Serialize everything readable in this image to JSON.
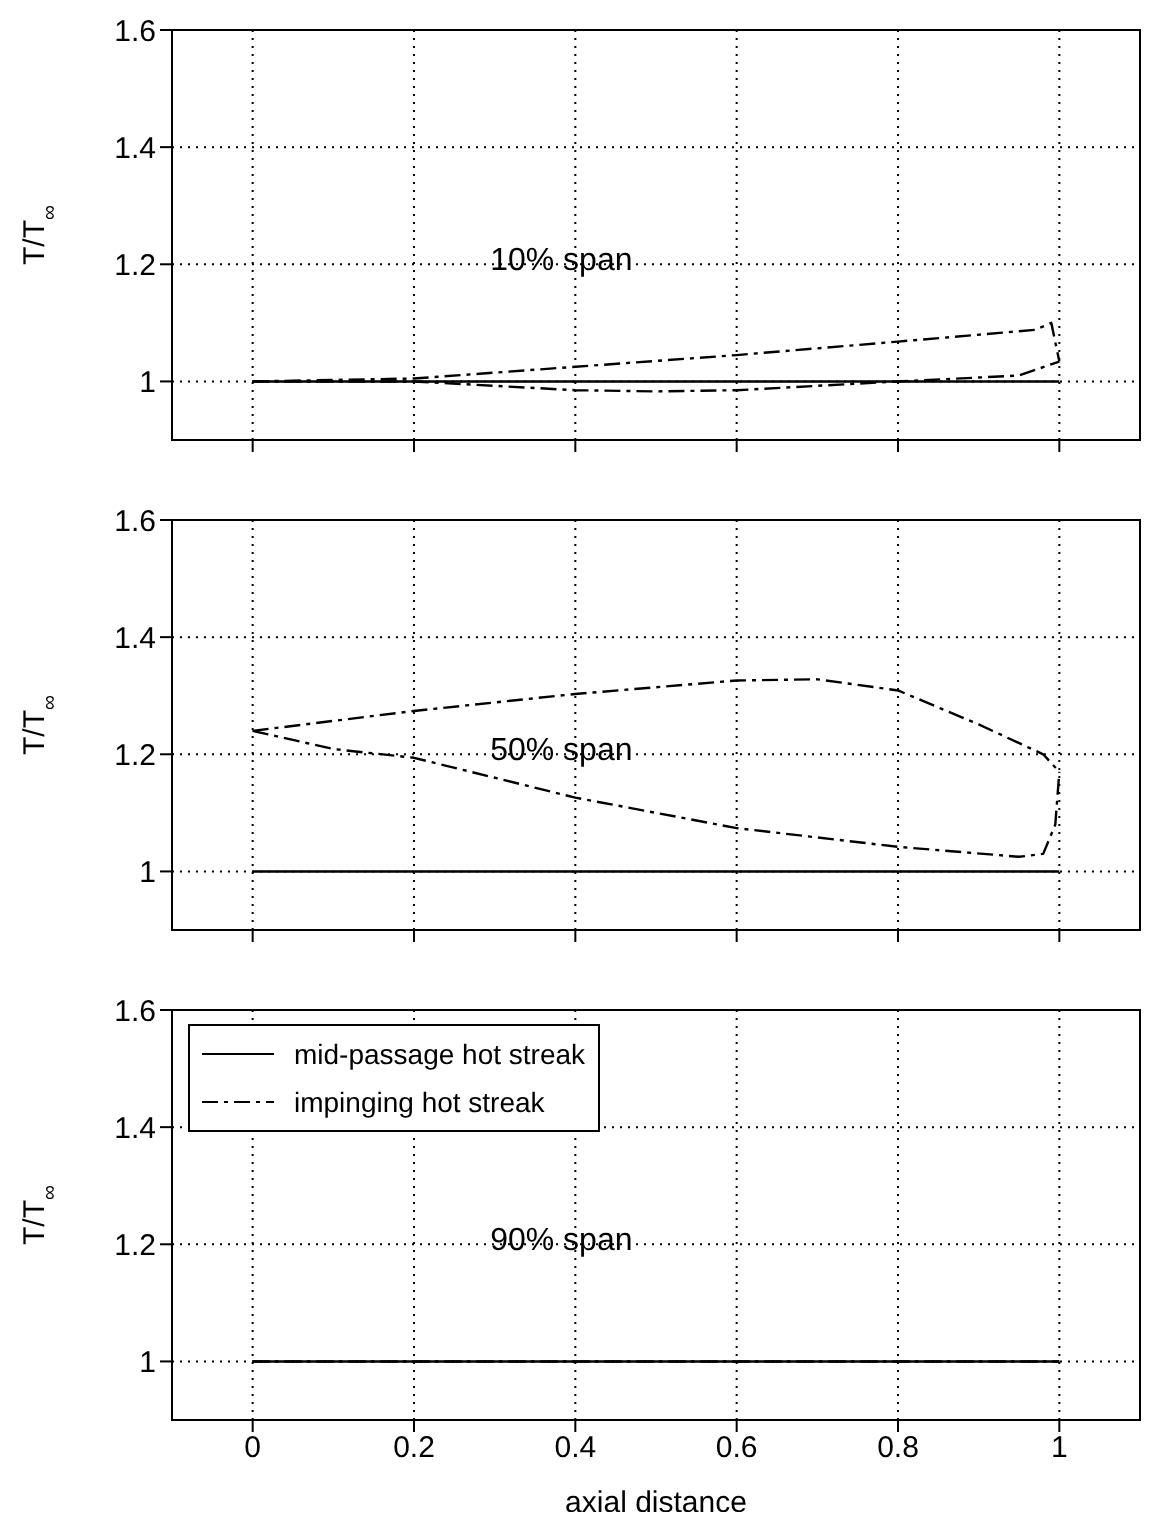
{
  "chart_data": [
    {
      "type": "line",
      "ylabel": "T/T$_{∞}$",
      "annotations": [
        "10% span"
      ],
      "xlim": [
        -0.1,
        1.1
      ],
      "xticks": [
        0,
        0.2,
        0.4,
        0.6,
        0.8,
        1
      ],
      "ylim": [
        0.9,
        1.6
      ],
      "yticks": [
        1,
        1.2,
        1.4,
        1.6
      ],
      "grid": true,
      "legend": false,
      "tick_labels": "y",
      "series": [
        {
          "color": "#000000",
          "line_style": "solid",
          "x": [
            0,
            0.2,
            0.4,
            0.6,
            0.8,
            1
          ],
          "values": [
            1,
            1,
            1,
            1,
            1,
            1
          ]
        },
        {
          "color": "#000000",
          "line_style": "dashed",
          "x": [
            0,
            0.2,
            0.4,
            0.6,
            0.8,
            0.97,
            0.99,
            1
          ],
          "values": [
            1,
            1.005,
            1.025,
            1.045,
            1.068,
            1.088,
            1.1,
            1.034
          ]
        },
        {
          "color": "#000000",
          "line_style": "dashed",
          "x": [
            0,
            0.2,
            0.4,
            0.5,
            0.6,
            0.8,
            0.95,
            1
          ],
          "values": [
            1,
            1,
            0.985,
            0.983,
            0.985,
            1,
            1.01,
            1.034
          ]
        }
      ]
    },
    {
      "type": "line",
      "ylabel": "T/T$_{∞}$",
      "annotations": [
        "50% span"
      ],
      "xlim": [
        -0.1,
        1.1
      ],
      "xticks": [
        0,
        0.2,
        0.4,
        0.6,
        0.8,
        1
      ],
      "ylim": [
        0.9,
        1.6
      ],
      "yticks": [
        1,
        1.2,
        1.4,
        1.6
      ],
      "grid": true,
      "legend": false,
      "tick_labels": "y",
      "series": [
        {
          "color": "#000000",
          "line_style": "solid",
          "x": [
            0,
            0.2,
            0.4,
            0.6,
            0.8,
            1
          ],
          "values": [
            1,
            1,
            1,
            1,
            1,
            1
          ]
        },
        {
          "color": "#000000",
          "line_style": "dashed",
          "x": [
            0,
            0.2,
            0.4,
            0.6,
            0.7,
            0.8,
            0.9,
            0.98,
            1
          ],
          "values": [
            1.24,
            1.274,
            1.303,
            1.326,
            1.328,
            1.309,
            1.251,
            1.2,
            1.17
          ]
        },
        {
          "color": "#000000",
          "line_style": "dashed",
          "x": [
            0,
            0.1,
            0.2,
            0.4,
            0.6,
            0.8,
            0.95,
            0.98,
            0.995,
            1
          ],
          "values": [
            1.24,
            1.209,
            1.194,
            1.126,
            1.074,
            1.042,
            1.025,
            1.03,
            1.08,
            1.17
          ]
        }
      ]
    },
    {
      "type": "line",
      "ylabel": "T/T$_{∞}$",
      "xlabel": "axial distance",
      "annotations": [
        "90% span"
      ],
      "xlim": [
        -0.1,
        1.1
      ],
      "xticks": [
        0,
        0.2,
        0.4,
        0.6,
        0.8,
        1
      ],
      "ylim": [
        0.9,
        1.6
      ],
      "yticks": [
        1,
        1.2,
        1.4,
        1.6
      ],
      "grid": true,
      "legend": "top left",
      "series": [
        {
          "name": "mid-passage hot streak",
          "color": "#000000",
          "line_style": "solid",
          "x": [
            0,
            0.2,
            0.4,
            0.6,
            0.8,
            1
          ],
          "values": [
            1,
            1,
            1,
            1,
            1,
            1
          ]
        },
        {
          "name": "impinging hot streak",
          "color": "#000000",
          "line_style": "dashed",
          "x": [
            0,
            0.2,
            0.4,
            0.6,
            0.8,
            1
          ],
          "values": [
            1,
            1,
            1,
            1,
            1,
            1
          ]
        }
      ]
    }
  ]
}
